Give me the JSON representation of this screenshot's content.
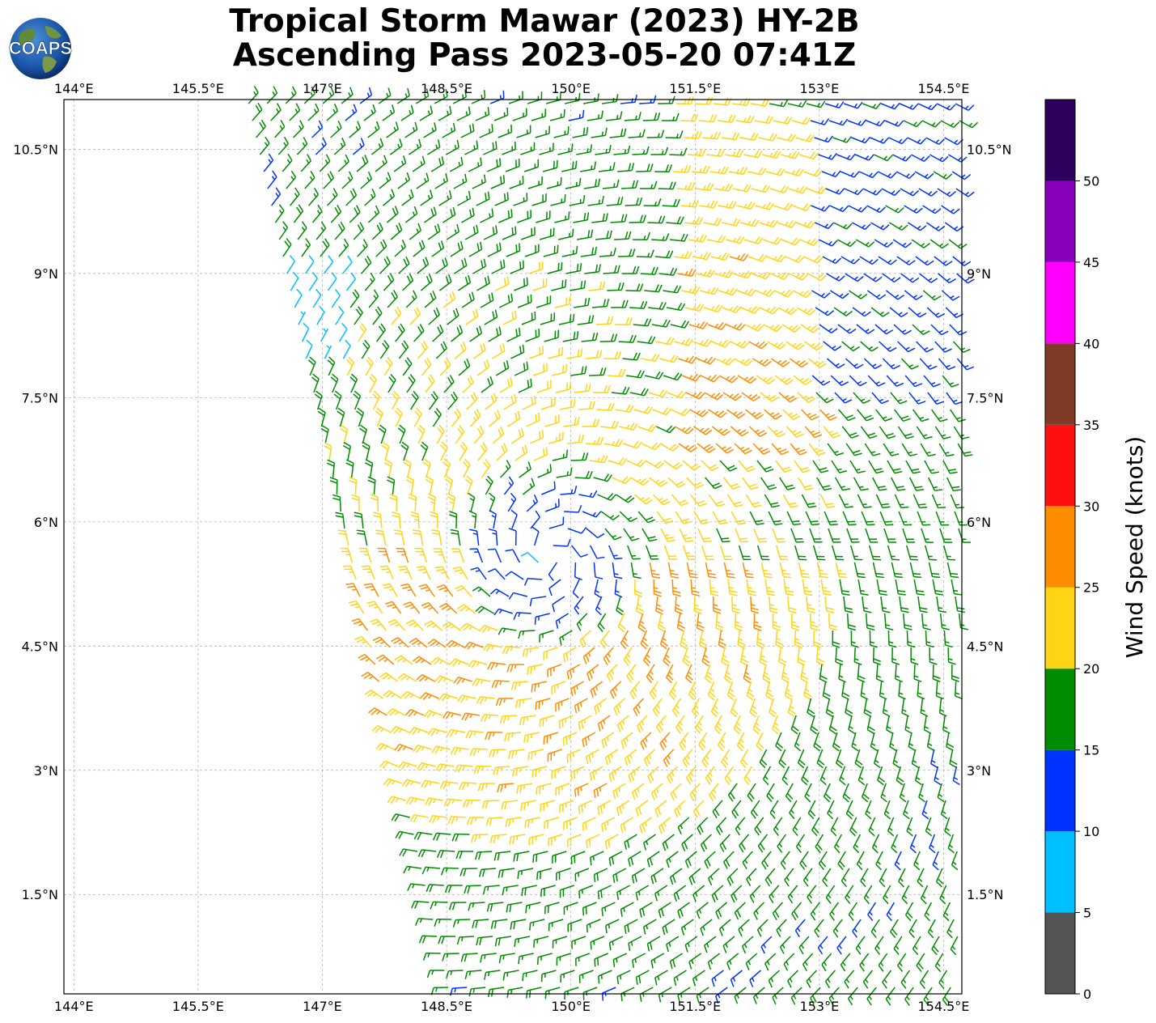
{
  "title": {
    "line1": "Tropical Storm Mawar (2023) HY-2B",
    "line2": "Ascending Pass 2023-05-20 07:41Z"
  },
  "logo": {
    "text": "COAPS",
    "icon": "globe-logo-icon"
  },
  "map": {
    "lon_range": [
      143.88,
      154.72
    ],
    "lat_range": [
      0.3,
      11.1
    ],
    "lon_ticks": [
      "144°E",
      "145.5°E",
      "147°E",
      "148.5°E",
      "150°E",
      "151.5°E",
      "153°E",
      "154.5°E"
    ],
    "lon_tick_values": [
      144,
      145.5,
      147,
      148.5,
      150,
      151.5,
      153,
      154.5
    ],
    "lat_ticks": [
      "1.5°N",
      "3°N",
      "4.5°N",
      "6°N",
      "7.5°N",
      "9°N",
      "10.5°N"
    ],
    "lat_tick_values": [
      1.5,
      3,
      4.5,
      6,
      7.5,
      9,
      10.5
    ],
    "gridlines": true,
    "storm_center": {
      "lon": 149.75,
      "lat": 5.6
    }
  },
  "colorbar": {
    "label": "Wind Speed (knots)",
    "ticks": [
      "0",
      "5",
      "10",
      "15",
      "20",
      "25",
      "30",
      "35",
      "40",
      "45",
      "50"
    ],
    "bins": [
      {
        "min": 0,
        "max": 5,
        "color": "#555555"
      },
      {
        "min": 5,
        "max": 10,
        "color": "#00bfff"
      },
      {
        "min": 10,
        "max": 15,
        "color": "#0033ff"
      },
      {
        "min": 15,
        "max": 20,
        "color": "#008c00"
      },
      {
        "min": 20,
        "max": 25,
        "color": "#ffd414"
      },
      {
        "min": 25,
        "max": 30,
        "color": "#ff8c00"
      },
      {
        "min": 30,
        "max": 35,
        "color": "#ff1010"
      },
      {
        "min": 35,
        "max": 40,
        "color": "#7f3b26"
      },
      {
        "min": 40,
        "max": 45,
        "color": "#ff00ff"
      },
      {
        "min": 45,
        "max": 50,
        "color": "#8800bb"
      },
      {
        "min": 50,
        "max": 55,
        "color": "#2c005c"
      }
    ]
  }
}
